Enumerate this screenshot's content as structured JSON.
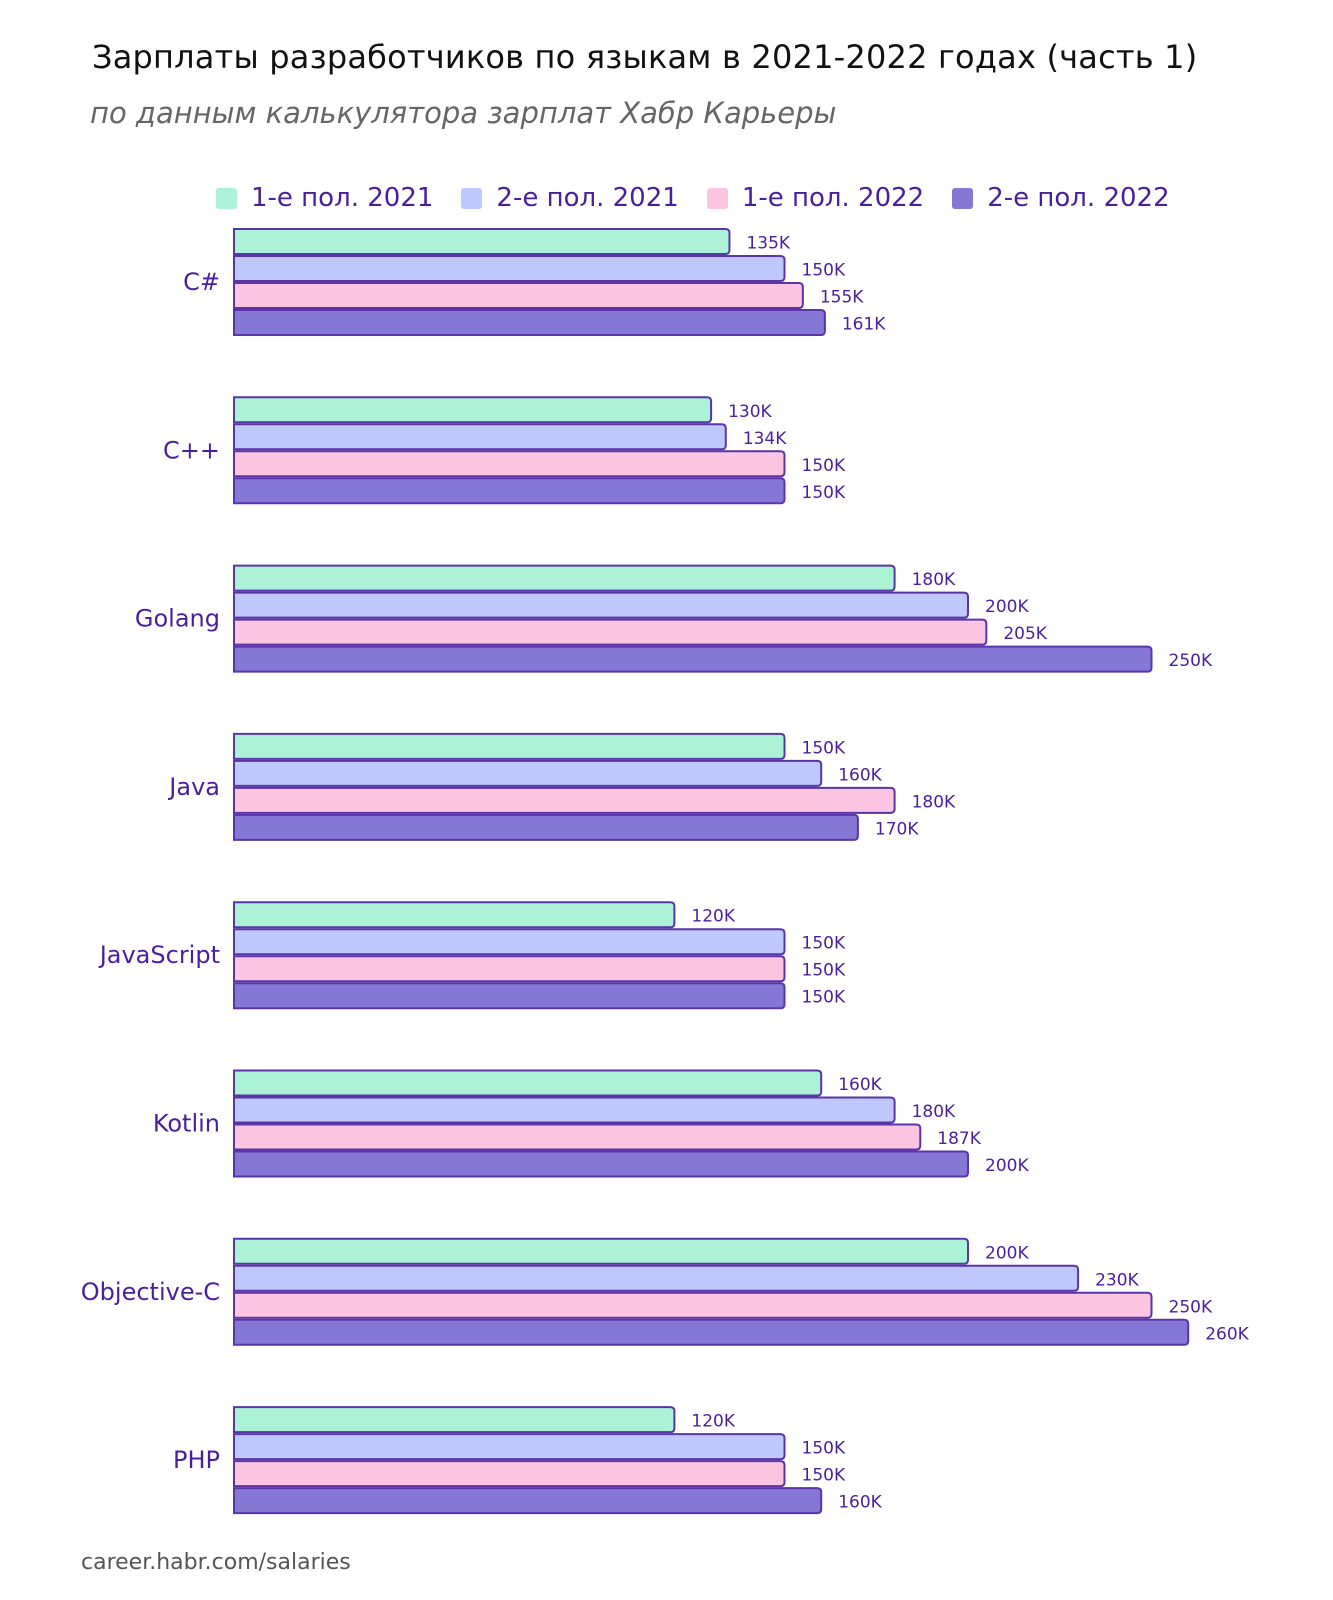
{
  "chart_data": {
    "type": "bar",
    "orientation": "horizontal",
    "title": "Зарплаты разработчиков по языкам в 2021-2022 годах (часть 1)",
    "subtitle": "по данным калькулятора зарплат Хабр Карьеры",
    "xlabel": "",
    "ylabel": "",
    "value_unit": "K",
    "grid": false,
    "legend_position": "top",
    "categories": [
      "C#",
      "C++",
      "Golang",
      "Java",
      "JavaScript",
      "Kotlin",
      "Objective-C",
      "PHP"
    ],
    "series": [
      {
        "name": "1-е пол. 2021",
        "color": "#abf2d6",
        "values": [
          135,
          130,
          180,
          150,
          120,
          160,
          200,
          120
        ]
      },
      {
        "name": "2-е пол. 2021",
        "color": "#bec8fc",
        "values": [
          150,
          134,
          200,
          160,
          150,
          180,
          230,
          150
        ]
      },
      {
        "name": "1-е пол. 2022",
        "color": "#fbc4e0",
        "values": [
          155,
          150,
          205,
          180,
          150,
          187,
          250,
          150
        ]
      },
      {
        "name": "2-е пол. 2022",
        "color": "#8577d4",
        "values": [
          161,
          150,
          250,
          170,
          150,
          200,
          260,
          160
        ]
      }
    ],
    "data_labels": [
      [
        "135K",
        "150K",
        "155K",
        "161K"
      ],
      [
        "130K",
        "134K",
        "150K",
        "150K"
      ],
      [
        "180K",
        "200K",
        "205K",
        "250K"
      ],
      [
        "150K",
        "160K",
        "180K",
        "170K"
      ],
      [
        "120K",
        "150K",
        "150K",
        "150K"
      ],
      [
        "160K",
        "180K",
        "187K",
        "200K"
      ],
      [
        "200K",
        "230K",
        "250K",
        "260K"
      ],
      [
        "120K",
        "150K",
        "150K",
        "160K"
      ]
    ],
    "xlim": [
      0,
      300
    ],
    "bar_outline_color": "#5a35a8",
    "label_color": "#4a1f9e"
  },
  "footer": "career.habr.com/salaries"
}
